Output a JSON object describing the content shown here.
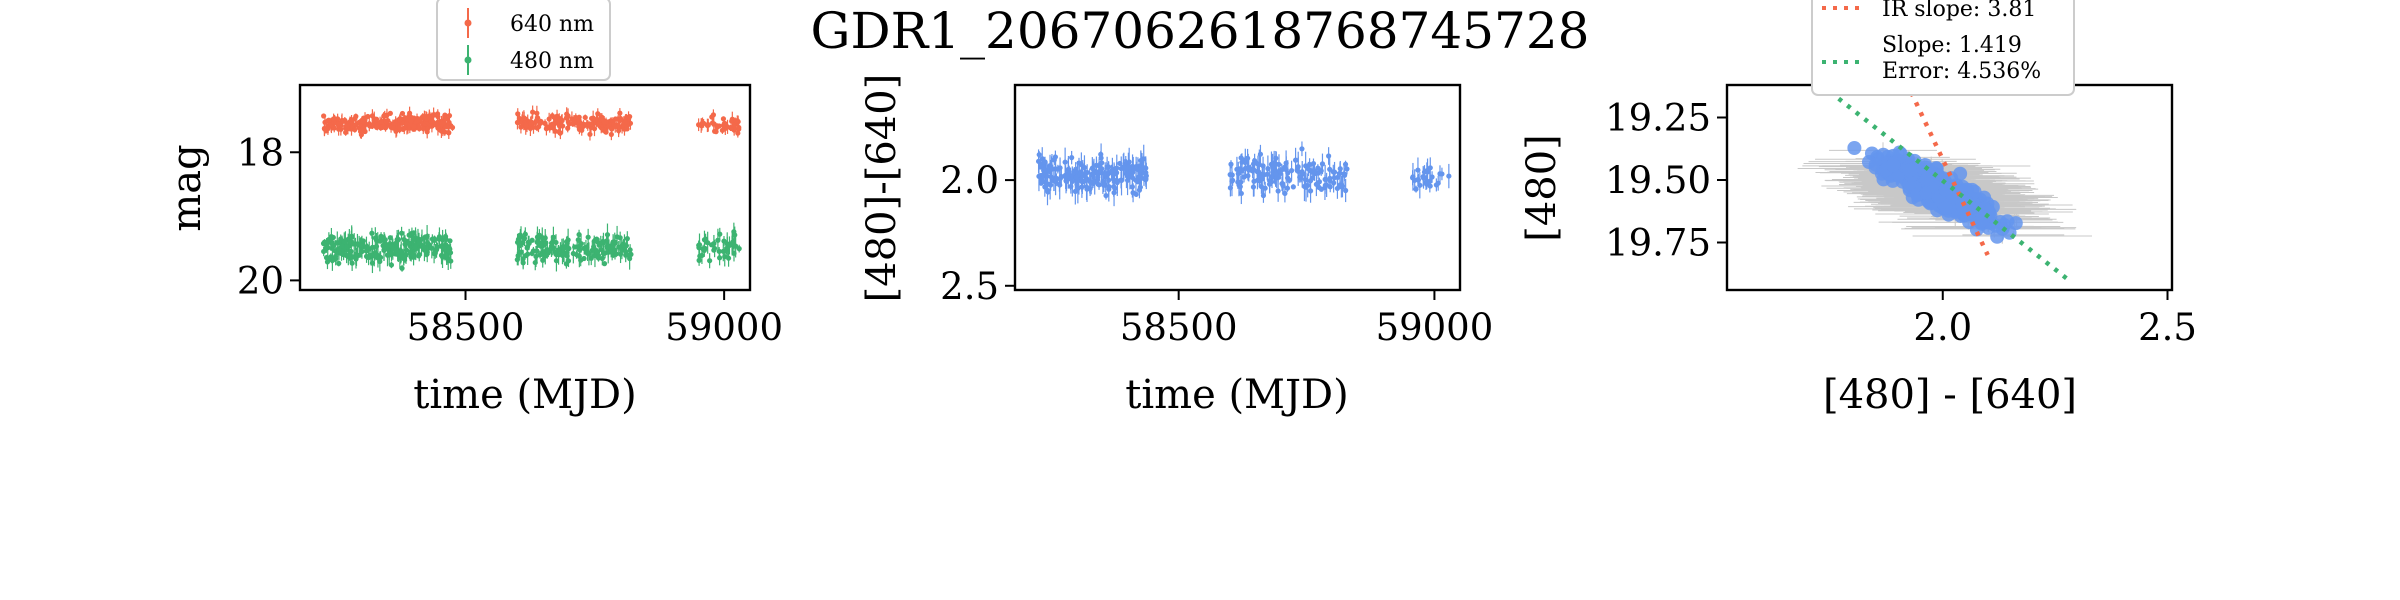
{
  "figure": {
    "title": "GDR1_2067062618768745728"
  },
  "chart_data": [
    {
      "type": "scatter",
      "xlabel": "time (MJD)",
      "ylabel": "mag",
      "xlim": [
        58180,
        59050
      ],
      "ylim": [
        20.15,
        16.95
      ],
      "y_inverted": true,
      "xticks": [
        58500,
        59000
      ],
      "yticks": [
        18,
        20
      ],
      "legend": {
        "placement": "top-center-outside",
        "entries": [
          "640 nm",
          "480 nm"
        ]
      },
      "series": [
        {
          "name": "640 nm",
          "color": "#f4694a",
          "marker": "point-errorbar",
          "segments": [
            [
              58225,
              58475
            ],
            [
              58600,
              58820
            ],
            [
              58950,
              59030
            ]
          ],
          "mean": 17.55,
          "spread": 0.3
        },
        {
          "name": "480 nm",
          "color": "#3cb371",
          "marker": "point-errorbar",
          "segments": [
            [
              58225,
              58475
            ],
            [
              58600,
              58820
            ],
            [
              58950,
              59030
            ]
          ],
          "mean": 19.5,
          "spread": 0.45
        }
      ]
    },
    {
      "type": "scatter",
      "xlabel": "time (MJD)",
      "ylabel": "[480]-[640]",
      "xlim": [
        58180,
        59050
      ],
      "ylim": [
        2.52,
        1.55
      ],
      "y_inverted": true,
      "xticks": [
        58500,
        59000
      ],
      "yticks": [
        2.0,
        2.5
      ],
      "series": [
        {
          "name": "",
          "color": "#6495ed",
          "marker": "point-errorbar",
          "segments": [
            [
              58225,
              58440
            ],
            [
              58600,
              58830
            ],
            [
              58950,
              59030
            ]
          ],
          "mean": 1.98,
          "spread": 0.18
        }
      ]
    },
    {
      "type": "scatter",
      "xlabel": "[480] - [640]",
      "ylabel": "[480]",
      "xlim": [
        1.52,
        2.51
      ],
      "ylim": [
        19.94,
        19.12
      ],
      "y_inverted": true,
      "xticks": [
        2.0,
        2.5
      ],
      "yticks": [
        19.25,
        19.5,
        19.75
      ],
      "points_color": "#6495ed",
      "error_color": "#c8c8c8",
      "point_count": 420,
      "trend_center": {
        "x": 2.0,
        "y": 19.55
      },
      "lines": [
        {
          "label": "IR slope: 3.81",
          "color": "#f4694a",
          "style": "dotted",
          "x": [
            1.93,
            2.1
          ],
          "y": [
            19.15,
            19.8
          ]
        },
        {
          "label": "Slope: 1.419\nError: 4.536%",
          "color": "#3cb371",
          "style": "dotted",
          "x": [
            1.73,
            2.28
          ],
          "y": [
            19.12,
            19.9
          ]
        }
      ],
      "legend": {
        "placement": "top-center-outside-clipped"
      }
    }
  ]
}
